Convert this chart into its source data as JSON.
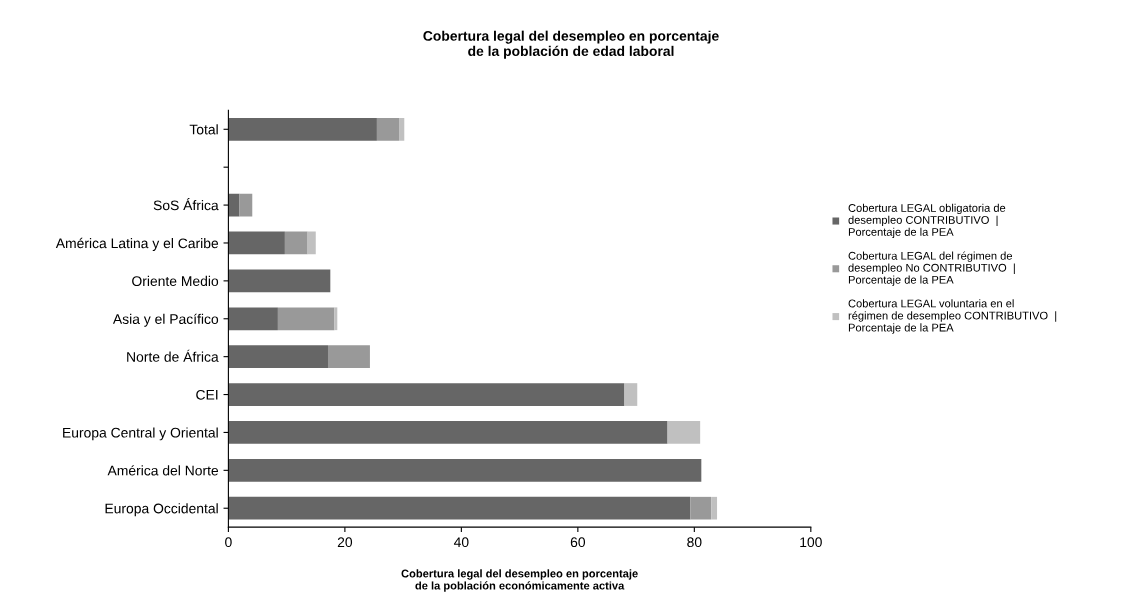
{
  "chart_data": {
    "type": "bar",
    "orientation": "horizontal",
    "stacked": true,
    "title": "Cobertura legal del desempleo en porcentaje\nde la población de edad laboral",
    "xlabel": "Cobertura legal del desempleo en porcentaje\nde la población económicamente activa",
    "categories": [
      "Total",
      null,
      "SoS África",
      "América Latina y el Caribe",
      "Oriente Medio",
      "Asia y el Pacífico",
      "Norte de África",
      "CEI",
      "Europa Central y Oriental",
      "América del Norte",
      "Europa Occidental"
    ],
    "series": [
      {
        "name": "Cobertura LEGAL obligatoria de desempleo CONTRIBUTIVO  |  Porcentaje de la PEA",
        "color": "#666666",
        "values": [
          25.5,
          null,
          1.9,
          9.7,
          17.5,
          8.5,
          17.1,
          68,
          75.4,
          81.2,
          79.3
        ]
      },
      {
        "name": "Cobertura LEGAL del régimen de desempleo No CONTRIBUTIVO  |  Porcentaje de la PEA",
        "color": "#999999",
        "values": [
          3.8,
          null,
          2.2,
          3.9,
          null,
          9.7,
          7.2,
          null,
          null,
          null,
          3.6
        ]
      },
      {
        "name": "Cobertura LEGAL voluntaria en el régimen de desempleo CONTRIBUTIVO  |  Porcentaje de la PEA",
        "color": "#c0c0c0",
        "values": [
          0.9,
          null,
          null,
          1.4,
          null,
          0.5,
          null,
          2.2,
          5.6,
          null,
          1.0
        ]
      }
    ],
    "xlim": [
      0,
      100
    ],
    "xticks": [
      0,
      20,
      40,
      60,
      80,
      100
    ],
    "grid": false,
    "legend": "right"
  }
}
